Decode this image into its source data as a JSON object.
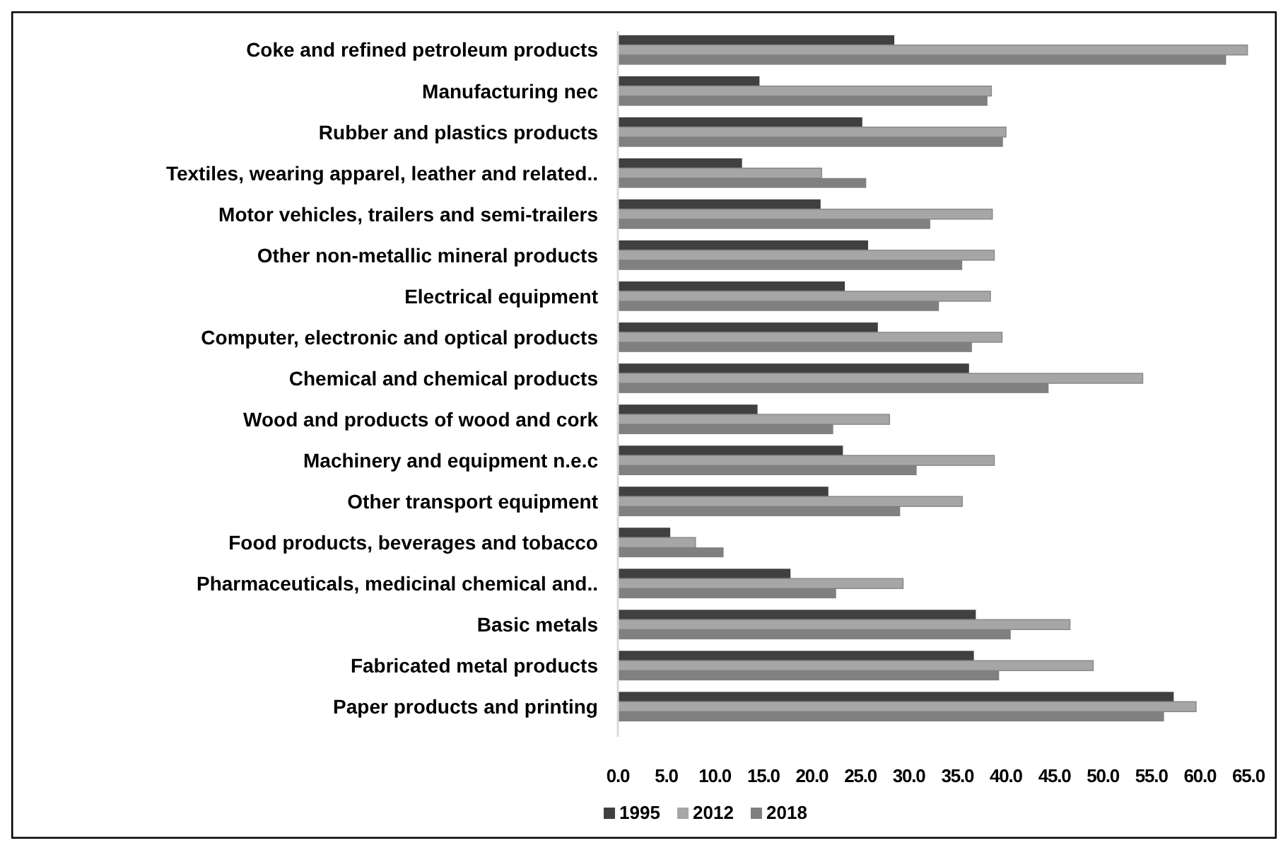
{
  "chart_data": {
    "type": "bar",
    "orientation": "horizontal",
    "categories": [
      "Coke and refined petroleum products",
      "Manufacturing nec",
      "Rubber and plastics products",
      "Textiles, wearing apparel, leather and related..",
      "Motor vehicles, trailers and semi-trailers",
      "Other non-metallic mineral products",
      "Electrical equipment",
      "Computer, electronic and optical products",
      "Chemical and chemical products",
      "Wood and products of wood and cork",
      "Machinery and equipment n.e.c",
      "Other transport equipment",
      "Food products, beverages and tobacco",
      "Pharmaceuticals, medicinal chemical and..",
      "Basic metals",
      "Fabricated metal products",
      "Paper products and printing"
    ],
    "series": [
      {
        "name": "1995",
        "color": "#404040",
        "values": [
          28.5,
          14.6,
          25.2,
          12.8,
          20.9,
          25.8,
          23.4,
          26.8,
          36.2,
          14.4,
          23.2,
          21.7,
          5.4,
          17.8,
          36.9,
          36.7,
          57.3
        ]
      },
      {
        "name": "2012",
        "color": "#a6a6a6",
        "values": [
          64.9,
          38.5,
          40.0,
          21.0,
          38.6,
          38.8,
          38.4,
          39.6,
          54.1,
          28.0,
          38.8,
          35.5,
          8.0,
          29.4,
          46.6,
          49.0,
          59.6
        ]
      },
      {
        "name": "2018",
        "color": "#808080",
        "values": [
          62.7,
          38.1,
          39.7,
          25.6,
          32.2,
          35.5,
          33.1,
          36.5,
          44.4,
          22.2,
          30.8,
          29.1,
          10.9,
          22.5,
          40.5,
          39.3,
          56.3
        ]
      }
    ],
    "xlim": [
      0,
      65
    ],
    "xticks": [
      {
        "value": 0,
        "label": "0.0"
      },
      {
        "value": 5,
        "label": "5.0"
      },
      {
        "value": 10,
        "label": "10.0"
      },
      {
        "value": 15,
        "label": "15.0"
      },
      {
        "value": 20,
        "label": "20.0"
      },
      {
        "value": 25,
        "label": "25.0"
      },
      {
        "value": 30,
        "label": "30.0"
      },
      {
        "value": 35,
        "label": "35.0"
      },
      {
        "value": 40,
        "label": "40.0"
      },
      {
        "value": 45,
        "label": "45.0"
      },
      {
        "value": 50,
        "label": "50.0"
      },
      {
        "value": 55,
        "label": "55.0"
      },
      {
        "value": 60,
        "label": "60.0"
      },
      {
        "value": 65,
        "label": "65.0"
      }
    ],
    "grid": false,
    "legend": "bottom left"
  }
}
